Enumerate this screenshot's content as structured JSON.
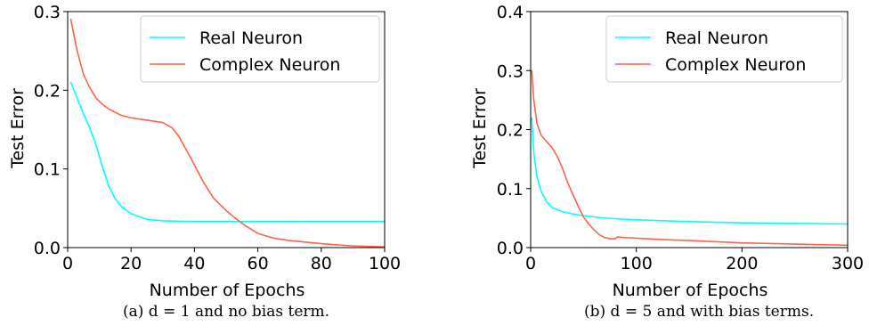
{
  "chart_data": [
    {
      "type": "line",
      "xlabel": "Number of Epochs",
      "ylabel": "Test Error",
      "xlim": [
        0,
        100
      ],
      "ylim": [
        0,
        0.3
      ],
      "xticks": [
        "0",
        "20",
        "40",
        "60",
        "80",
        "100"
      ],
      "yticks": [
        "0.0",
        "0.1",
        "0.2",
        "0.3"
      ],
      "legend": "top-right",
      "grid": false,
      "series": [
        {
          "name": "Real Neuron",
          "color": "#00FFFF",
          "x": [
            1,
            3,
            5,
            7,
            9,
            11,
            13,
            15,
            17,
            20,
            25,
            30,
            40,
            50,
            60,
            70,
            80,
            90,
            100
          ],
          "y": [
            0.21,
            0.19,
            0.17,
            0.152,
            0.13,
            0.102,
            0.078,
            0.062,
            0.052,
            0.043,
            0.036,
            0.034,
            0.033,
            0.033,
            0.033,
            0.033,
            0.033,
            0.033,
            0.033
          ]
        },
        {
          "name": "Complex Neuron",
          "color": "#FF6347",
          "x": [
            1,
            3,
            5,
            7,
            9,
            11,
            13,
            15,
            17,
            20,
            25,
            30,
            33,
            35,
            38,
            40,
            43,
            46,
            50,
            53,
            56,
            60,
            65,
            70,
            80,
            90,
            100
          ],
          "y": [
            0.29,
            0.25,
            0.22,
            0.203,
            0.19,
            0.182,
            0.176,
            0.172,
            0.168,
            0.165,
            0.162,
            0.159,
            0.152,
            0.142,
            0.12,
            0.105,
            0.082,
            0.063,
            0.047,
            0.037,
            0.028,
            0.018,
            0.012,
            0.009,
            0.005,
            0.002,
            0.001
          ]
        }
      ]
    },
    {
      "type": "line",
      "xlabel": "Number of Epochs",
      "ylabel": "Test Error",
      "xlim": [
        0,
        300
      ],
      "ylim": [
        0,
        0.4
      ],
      "xticks": [
        "0",
        "100",
        "200",
        "300"
      ],
      "yticks": [
        "0.0",
        "0.1",
        "0.2",
        "0.3",
        "0.4"
      ],
      "legend": "top-right",
      "grid": false,
      "series": [
        {
          "name": "Real Neuron",
          "color": "#00FFFF",
          "x": [
            1,
            3,
            6,
            10,
            15,
            20,
            30,
            40,
            50,
            70,
            100,
            150,
            200,
            250,
            300
          ],
          "y": [
            0.22,
            0.16,
            0.12,
            0.095,
            0.078,
            0.068,
            0.061,
            0.057,
            0.054,
            0.05,
            0.047,
            0.044,
            0.042,
            0.041,
            0.04
          ]
        },
        {
          "name": "Complex Neuron",
          "color": "#FF6347",
          "x": [
            1,
            3,
            6,
            10,
            15,
            20,
            25,
            30,
            35,
            40,
            45,
            50,
            55,
            60,
            65,
            70,
            75,
            80,
            82,
            90,
            100,
            120,
            150,
            200,
            250,
            300
          ],
          "y": [
            0.3,
            0.25,
            0.21,
            0.19,
            0.18,
            0.17,
            0.155,
            0.135,
            0.11,
            0.09,
            0.07,
            0.052,
            0.04,
            0.03,
            0.022,
            0.017,
            0.015,
            0.015,
            0.018,
            0.017,
            0.016,
            0.014,
            0.012,
            0.008,
            0.006,
            0.004
          ]
        }
      ]
    }
  ],
  "captions": {
    "a": "(a) d = 1 and no bias term.",
    "b": "(b) d = 5 and with bias terms."
  }
}
